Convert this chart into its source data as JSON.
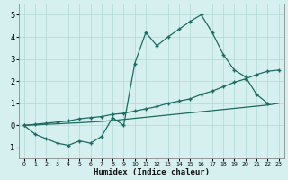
{
  "xlabel": "Humidex (Indice chaleur)",
  "bg_color": "#d6f0f0",
  "grid_color": "#b0d8d5",
  "line_color": "#1a6b60",
  "xlim": [
    -0.5,
    23.5
  ],
  "ylim": [
    -1.5,
    5.5
  ],
  "xticks": [
    0,
    1,
    2,
    3,
    4,
    5,
    6,
    7,
    8,
    9,
    10,
    11,
    12,
    13,
    14,
    15,
    16,
    17,
    18,
    19,
    20,
    21,
    22,
    23
  ],
  "yticks": [
    -1,
    0,
    1,
    2,
    3,
    4,
    5
  ],
  "line_jagged_x": [
    0,
    1,
    2,
    3,
    4,
    5,
    6,
    7,
    8,
    9,
    10,
    11,
    12,
    13,
    14,
    15,
    16,
    17,
    18,
    19,
    20,
    21,
    22
  ],
  "line_jagged_y": [
    0.0,
    -0.4,
    -0.6,
    -0.8,
    -0.9,
    -0.7,
    -0.8,
    -0.5,
    0.35,
    0.0,
    2.8,
    4.2,
    3.6,
    4.0,
    4.35,
    4.7,
    5.0,
    4.2,
    3.2,
    2.5,
    2.2,
    1.4,
    1.0
  ],
  "line_mid_x": [
    0,
    1,
    2,
    3,
    4,
    5,
    6,
    7,
    8,
    9,
    10,
    11,
    12,
    13,
    14,
    15,
    16,
    17,
    18,
    19,
    20,
    21,
    22,
    23
  ],
  "line_mid_y": [
    0.0,
    0.05,
    0.1,
    0.15,
    0.2,
    0.3,
    0.35,
    0.4,
    0.5,
    0.55,
    0.65,
    0.75,
    0.85,
    1.0,
    1.1,
    1.2,
    1.4,
    1.55,
    1.75,
    1.95,
    2.1,
    2.3,
    2.45,
    2.5
  ],
  "line_low_x": [
    0,
    1,
    2,
    3,
    4,
    5,
    6,
    7,
    8,
    9,
    10,
    11,
    12,
    13,
    14,
    15,
    16,
    17,
    18,
    19,
    20,
    21,
    22,
    23
  ],
  "line_low_y": [
    0.0,
    0.02,
    0.05,
    0.07,
    0.1,
    0.12,
    0.15,
    0.18,
    0.22,
    0.27,
    0.32,
    0.37,
    0.42,
    0.47,
    0.52,
    0.57,
    0.62,
    0.67,
    0.72,
    0.77,
    0.82,
    0.87,
    0.92,
    1.0
  ]
}
